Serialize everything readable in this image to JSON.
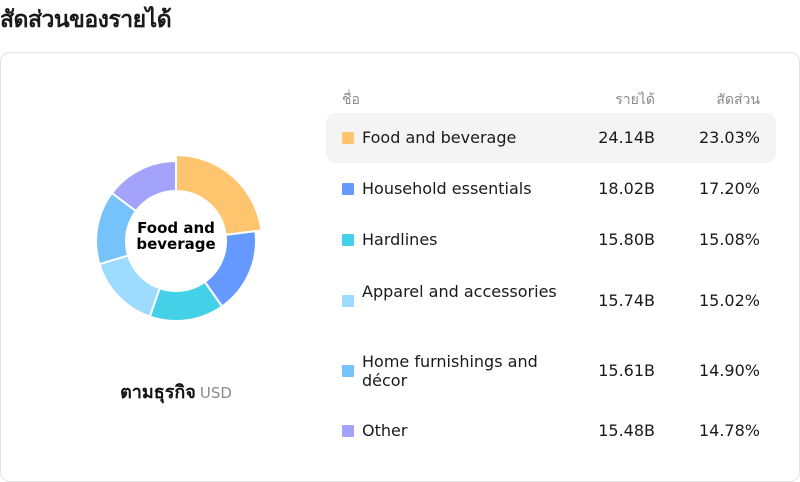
{
  "page": {
    "title": "สัดส่วนของรายได้"
  },
  "chart_data": {
    "type": "pie",
    "donut": true,
    "center_label": "Food and beverage",
    "caption": "ตามธุรกิจ",
    "unit": "USD",
    "columns": {
      "name": "ชื่อ",
      "revenue": "รายได้",
      "share": "สัดส่วน"
    },
    "highlighted_index": 0,
    "slices": [
      {
        "name": "Food and beverage",
        "revenue": "24.14B",
        "value": 24.14,
        "share": "23.03%",
        "color": "#FFC56E"
      },
      {
        "name": "Household essentials",
        "revenue": "18.02B",
        "value": 18.02,
        "share": "17.20%",
        "color": "#6699FF"
      },
      {
        "name": "Hardlines",
        "revenue": "15.80B",
        "value": 15.8,
        "share": "15.08%",
        "color": "#44D1E8"
      },
      {
        "name": "Apparel and accessories",
        "revenue": "15.74B",
        "value": 15.74,
        "share": "15.02%",
        "color": "#9DDCFF"
      },
      {
        "name": "Home furnishings and décor",
        "revenue": "15.61B",
        "value": 15.61,
        "share": "14.90%",
        "color": "#76C2FA"
      },
      {
        "name": "Other",
        "revenue": "15.48B",
        "value": 15.48,
        "share": "14.78%",
        "color": "#A3A3FC"
      }
    ]
  }
}
